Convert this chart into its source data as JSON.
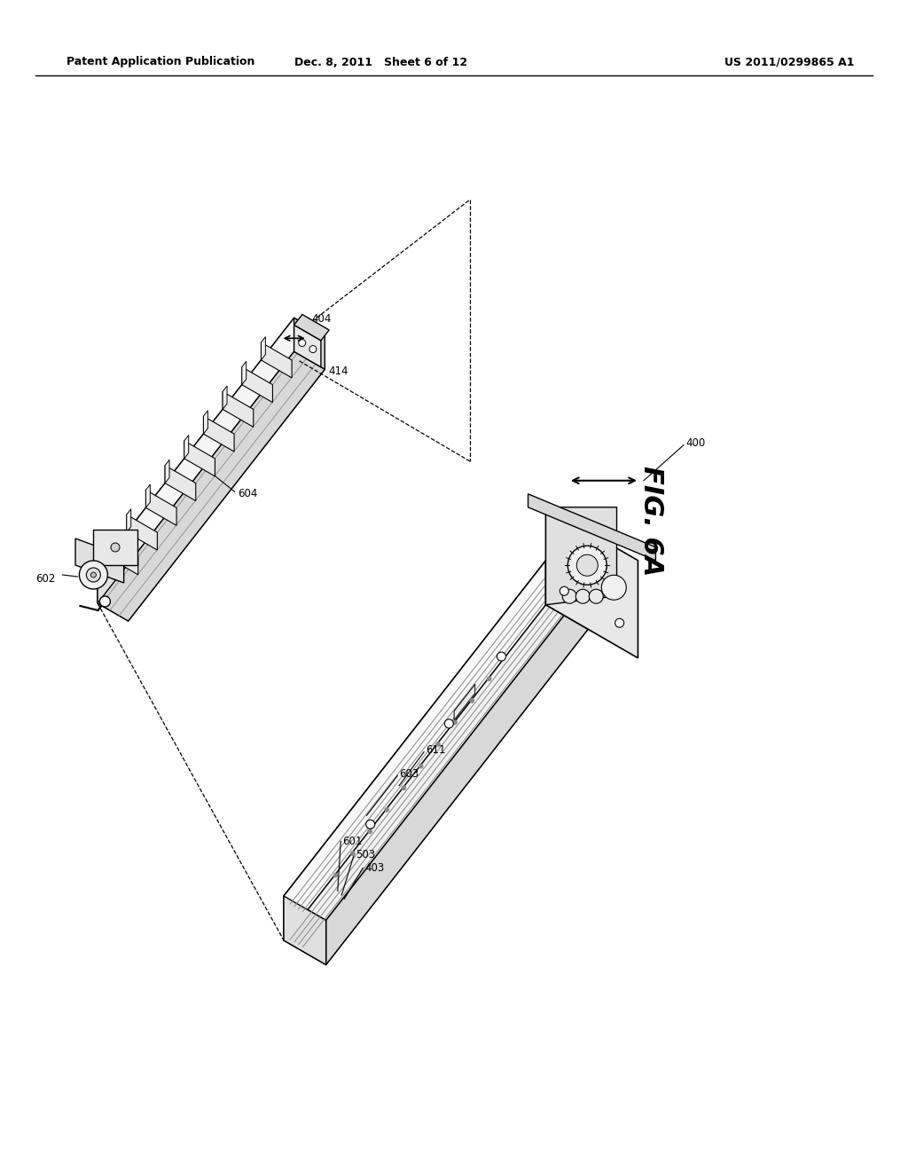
{
  "background_color": "#ffffff",
  "header_left": "Patent Application Publication",
  "header_center": "Dec. 8, 2011   Sheet 6 of 12",
  "header_right": "US 2011/0299865 A1",
  "fig_label": "FIG. 6A",
  "line_color": "#000000",
  "text_color": "#000000",
  "gray_light": "#e8e8e8",
  "gray_mid": "#d0d0d0",
  "gray_dark": "#a0a0a0"
}
